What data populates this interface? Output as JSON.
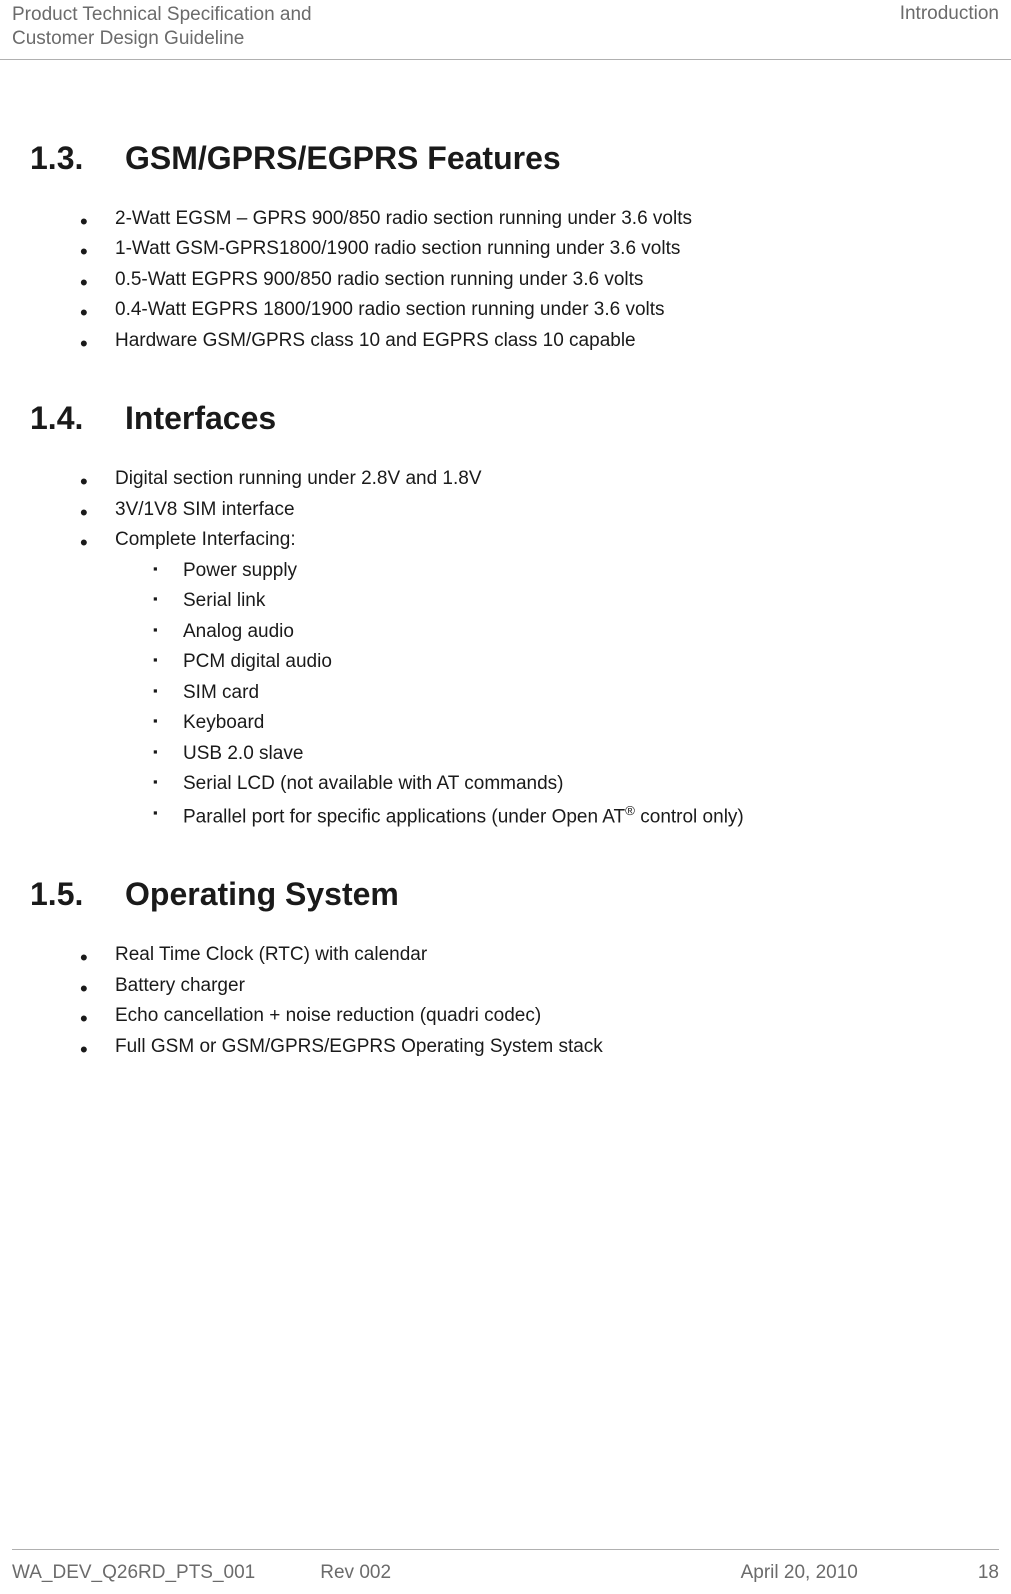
{
  "header": {
    "left_line1": "Product Technical Specification and",
    "left_line2": "Customer Design Guideline",
    "right": "Introduction"
  },
  "sections": {
    "s1_3": {
      "number": "1.3.",
      "title": "GSM/GPRS/EGPRS Features",
      "bullets": {
        "b0": "2-Watt EGSM – GPRS 900/850 radio section running under 3.6 volts",
        "b1": "1-Watt GSM-GPRS1800/1900 radio section running under 3.6 volts",
        "b2": "0.5-Watt EGPRS 900/850 radio section running under 3.6 volts",
        "b3": "0.4-Watt EGPRS 1800/1900 radio section running under 3.6 volts",
        "b4": "Hardware GSM/GPRS class 10 and EGPRS class 10 capable"
      }
    },
    "s1_4": {
      "number": "1.4.",
      "title": "Interfaces",
      "bullets": {
        "b0": "Digital section running under 2.8V and 1.8V",
        "b1": "3V/1V8 SIM interface",
        "b2": "Complete Interfacing:",
        "sub": {
          "s0": "Power supply",
          "s1": "Serial link",
          "s2": "Analog audio",
          "s3": "PCM digital audio",
          "s4": "SIM card",
          "s5": "Keyboard",
          "s6": "USB 2.0 slave",
          "s7": "Serial LCD (not available with AT commands)",
          "s8_pre": "Parallel port for specific applications (under Open AT",
          "s8_sup": "®",
          "s8_post": " control only)"
        }
      }
    },
    "s1_5": {
      "number": "1.5.",
      "title": "Operating System",
      "bullets": {
        "b0": "Real Time Clock (RTC) with calendar",
        "b1": "Battery charger",
        "b2": "Echo cancellation + noise reduction (quadri codec)",
        "b3": "Full GSM or GSM/GPRS/EGPRS Operating System stack"
      }
    }
  },
  "footer": {
    "doc": "WA_DEV_Q26RD_PTS_001",
    "rev": "Rev 002",
    "date": "April 20, 2010",
    "page": "18"
  }
}
